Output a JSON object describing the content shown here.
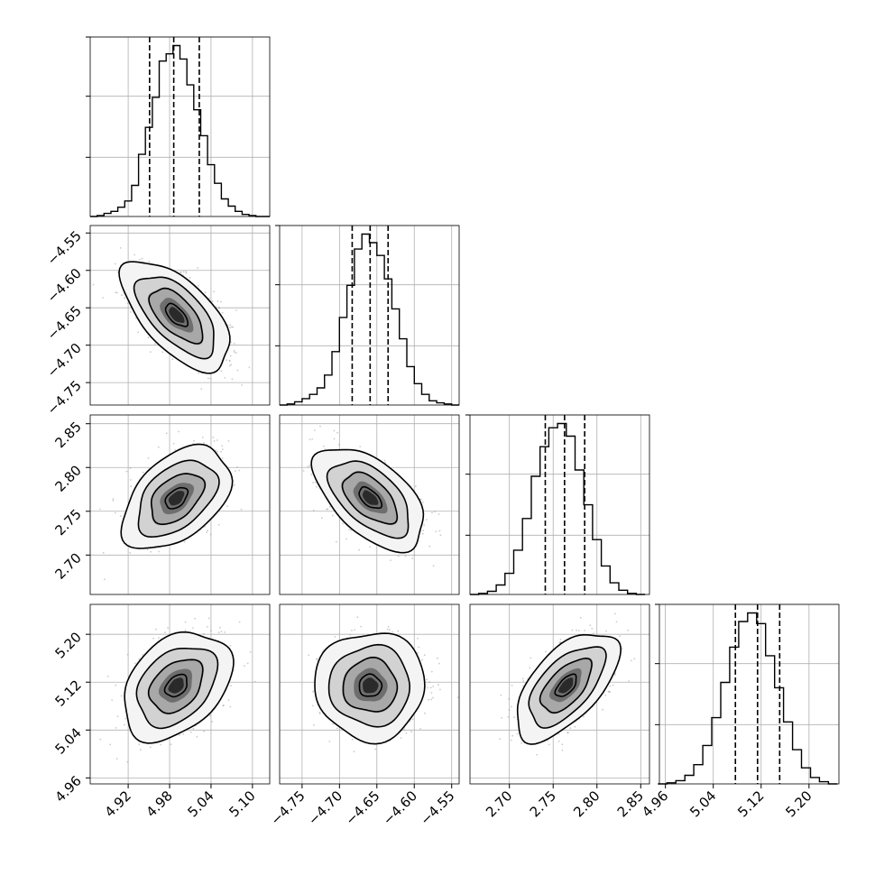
{
  "chart_data": {
    "type": "corner",
    "parameters": 4,
    "grid": true,
    "quantile_lines": "dashed",
    "histograms": [
      {
        "param": 0,
        "xlim": [
          4.865,
          5.125
        ],
        "bin_centers": [
          4.87,
          4.88,
          4.89,
          4.9,
          4.91,
          4.92,
          4.93,
          4.94,
          4.95,
          4.96,
          4.97,
          4.98,
          4.99,
          5.0,
          5.01,
          5.02,
          5.03,
          5.04,
          5.05,
          5.06,
          5.07,
          5.08,
          5.09,
          5.1,
          5.11,
          5.12
        ],
        "counts": [
          0,
          1,
          3,
          5,
          9,
          15,
          30,
          60,
          86,
          115,
          150,
          157,
          165,
          152,
          127,
          103,
          78,
          50,
          32,
          17,
          10,
          5,
          2,
          1,
          0,
          0
        ],
        "quantiles": [
          4.951,
          4.986,
          5.023
        ],
        "yticks": [
          0.33,
          0.67,
          1.0
        ]
      },
      {
        "param": 1,
        "xlim": [
          -4.78,
          -4.54
        ],
        "bin_centers": [
          -4.775,
          -4.765,
          -4.755,
          -4.745,
          -4.735,
          -4.725,
          -4.715,
          -4.705,
          -4.695,
          -4.685,
          -4.675,
          -4.665,
          -4.655,
          -4.645,
          -4.635,
          -4.625,
          -4.615,
          -4.605,
          -4.595,
          -4.585,
          -4.575,
          -4.565,
          -4.555,
          -4.545
        ],
        "counts": [
          0,
          1,
          3,
          6,
          10,
          16,
          28,
          50,
          82,
          112,
          146,
          160,
          152,
          140,
          118,
          90,
          62,
          36,
          20,
          10,
          4,
          2,
          1,
          0
        ],
        "quantiles": [
          -4.683,
          -4.659,
          -4.635
        ],
        "yticks": [
          0.33,
          0.67,
          1.0
        ]
      },
      {
        "param": 2,
        "xlim": [
          2.655,
          2.86
        ],
        "bin_centers": [
          2.66,
          2.67,
          2.68,
          2.69,
          2.7,
          2.71,
          2.72,
          2.73,
          2.74,
          2.75,
          2.76,
          2.77,
          2.78,
          2.79,
          2.8,
          2.81,
          2.82,
          2.83,
          2.84,
          2.85
        ],
        "counts": [
          0,
          1,
          3,
          9,
          20,
          42,
          72,
          112,
          140,
          158,
          162,
          150,
          118,
          85,
          52,
          27,
          11,
          4,
          1,
          0
        ],
        "quantiles": [
          2.741,
          2.763,
          2.786
        ],
        "yticks": [
          0.33,
          0.67,
          1.0
        ]
      },
      {
        "param": 3,
        "xlim": [
          4.95,
          5.25
        ],
        "bin_centers": [
          4.955,
          4.97,
          4.985,
          5.0,
          5.015,
          5.03,
          5.045,
          5.06,
          5.075,
          5.09,
          5.105,
          5.12,
          5.135,
          5.15,
          5.165,
          5.18,
          5.195,
          5.21,
          5.225,
          5.24
        ],
        "counts": [
          0,
          1,
          3,
          8,
          18,
          36,
          62,
          95,
          128,
          152,
          160,
          150,
          120,
          90,
          58,
          32,
          15,
          6,
          2,
          0
        ],
        "quantiles": [
          5.077,
          5.114,
          5.151
        ],
        "yticks": [
          0.33,
          0.67,
          1.0
        ]
      }
    ],
    "pairs": [
      {
        "row": 1,
        "col": 0,
        "center": [
          4.99,
          -4.66
        ],
        "sigma": [
          0.032,
          0.03
        ],
        "corr": -0.62,
        "xlim": [
          4.865,
          5.125
        ],
        "ylim": [
          -4.78,
          -4.54
        ]
      },
      {
        "row": 2,
        "col": 0,
        "center": [
          4.99,
          2.765
        ],
        "sigma": [
          0.032,
          0.024
        ],
        "corr": 0.45,
        "xlim": [
          4.865,
          5.125
        ],
        "ylim": [
          2.655,
          2.86
        ]
      },
      {
        "row": 2,
        "col": 1,
        "center": [
          -4.659,
          2.765
        ],
        "sigma": [
          0.03,
          0.024
        ],
        "corr": -0.55,
        "xlim": [
          -4.78,
          -4.54
        ],
        "ylim": [
          2.655,
          2.86
        ]
      },
      {
        "row": 3,
        "col": 0,
        "center": [
          4.99,
          5.114
        ],
        "sigma": [
          0.032,
          0.037
        ],
        "corr": 0.35,
        "xlim": [
          4.865,
          5.125
        ],
        "ylim": [
          4.95,
          5.25
        ]
      },
      {
        "row": 3,
        "col": 1,
        "center": [
          -4.659,
          5.114
        ],
        "sigma": [
          0.03,
          0.037
        ],
        "corr": 0.0,
        "xlim": [
          -4.78,
          -4.54
        ],
        "ylim": [
          4.95,
          5.25
        ]
      },
      {
        "row": 3,
        "col": 2,
        "center": [
          2.765,
          5.114
        ],
        "sigma": [
          0.024,
          0.037
        ],
        "corr": 0.6,
        "xlim": [
          2.655,
          2.86
        ],
        "ylim": [
          4.95,
          5.25
        ]
      }
    ],
    "xtick_labels": [
      [
        "4.92",
        "4.98",
        "5.04",
        "5.10"
      ],
      [
        "−4.75",
        "−4.70",
        "−4.65",
        "−4.60",
        "−4.55"
      ],
      [
        "2.70",
        "2.75",
        "2.80",
        "2.85"
      ],
      [
        "4.96",
        "5.04",
        "5.12",
        "5.20"
      ]
    ],
    "ytick_labels": [
      [],
      [
        "−4.55",
        "−4.60",
        "−4.65",
        "−4.70",
        "−4.75"
      ],
      [
        "2.85",
        "2.80",
        "2.75",
        "2.70"
      ],
      [
        "5.20",
        "5.12",
        "5.04",
        "4.96"
      ]
    ],
    "xticks": [
      [
        4.92,
        4.98,
        5.04,
        5.1
      ],
      [
        -4.75,
        -4.7,
        -4.65,
        -4.6,
        -4.55
      ],
      [
        2.7,
        2.75,
        2.8,
        2.85
      ],
      [
        4.96,
        5.04,
        5.12,
        5.2
      ]
    ],
    "yticks": [
      [],
      [
        -4.55,
        -4.6,
        -4.65,
        -4.7,
        -4.75
      ],
      [
        2.85,
        2.8,
        2.75,
        2.7
      ],
      [
        5.2,
        5.12,
        5.04,
        4.96
      ]
    ],
    "colors": {
      "line": "#000000",
      "grid": "#b0b0b0",
      "points": "#8c8c8c",
      "frame": "#000000"
    }
  }
}
